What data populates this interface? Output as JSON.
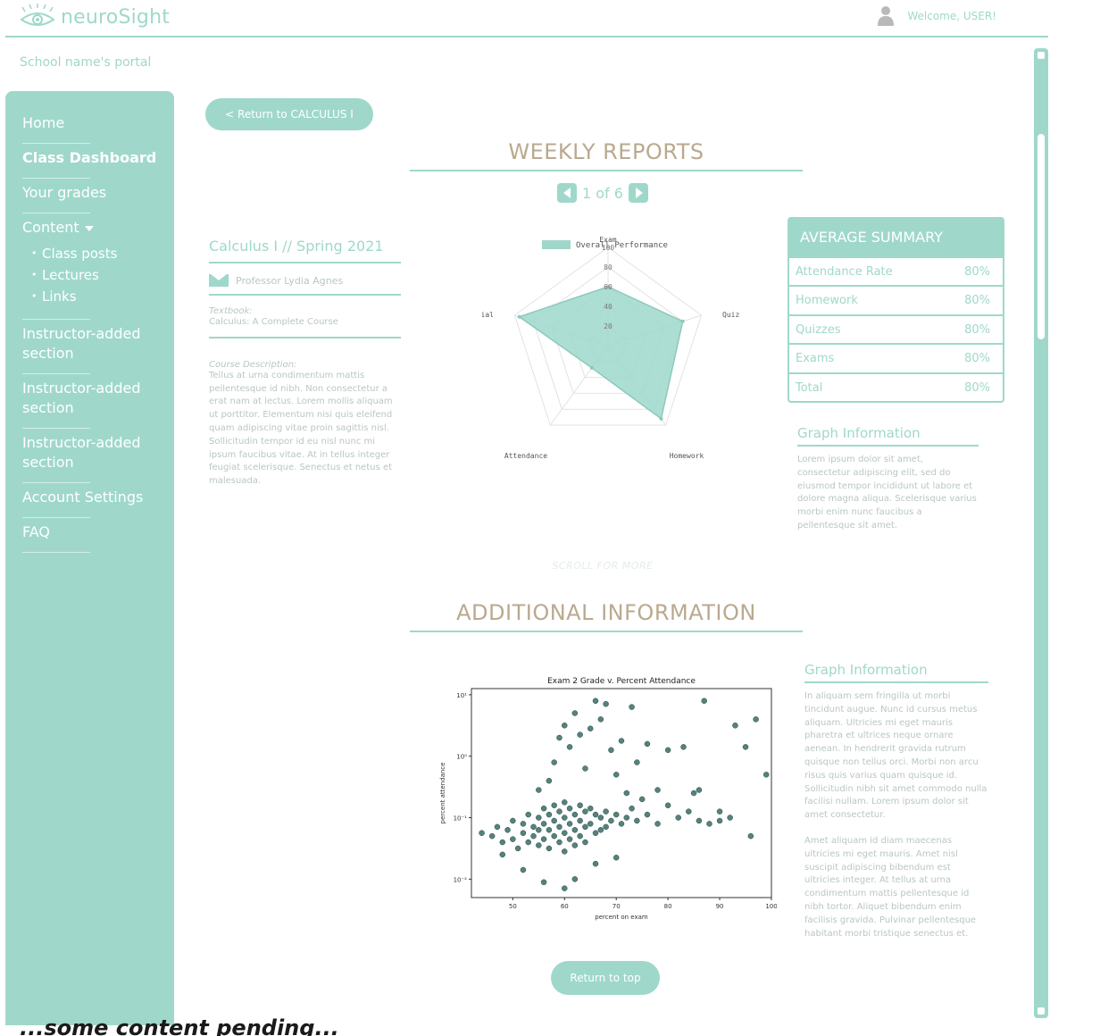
{
  "header": {
    "app_name": "neuroSight",
    "welcome": "Welcome, USER!",
    "portal_title": "School name's portal"
  },
  "sidebar": {
    "items": [
      {
        "label": "Home"
      },
      {
        "label": "Class Dashboard"
      },
      {
        "label": "Your grades"
      },
      {
        "label": "Content"
      },
      {
        "label": "Instructor-added section"
      },
      {
        "label": "Instructor-added section"
      },
      {
        "label": "Instructor-added section"
      },
      {
        "label": "Account Settings"
      },
      {
        "label": "FAQ"
      }
    ],
    "content_subitems": [
      "Class posts",
      "Lectures",
      "Links"
    ]
  },
  "main": {
    "return_button": "< Return to CALCULUS I",
    "weekly_title": "WEEKLY REPORTS",
    "pager": "1 of 6",
    "course": {
      "title": "Calculus I  //  Spring 2021",
      "professor": "Professor Lydia Agnes",
      "textbook_label": "Textbook:",
      "textbook": "Calculus: A Complete Course",
      "description_label": "Course Description:",
      "description": "Tellus at urna condimentum mattis pellentesque id nibh. Non consectetur a erat nam at lectus. Lorem mollis aliquam ut porttitor. Elementum nisi quis eleifend quam adipiscing vitae proin sagittis nisl. Sollicitudin tempor id eu nisl nunc mi ipsum faucibus vitae. At in tellus integer feugiat scelerisque. Senectus et netus et malesuada."
    },
    "summary": {
      "title": "AVERAGE SUMMARY",
      "rows": [
        {
          "label": "Attendance Rate",
          "value": "80%"
        },
        {
          "label": "Homework",
          "value": "80%"
        },
        {
          "label": "Quizzes",
          "value": "80%"
        },
        {
          "label": "Exams",
          "value": "80%"
        },
        {
          "label": "Total",
          "value": "80%"
        }
      ]
    },
    "graph_info_1": {
      "title": "Graph Information",
      "text": "Lorem ipsum dolor sit amet, consectetur adipiscing elit, sed do eiusmod tempor incididunt ut labore et dolore magna aliqua. Scelerisque varius morbi enim nunc faucibus a pellentesque sit amet."
    },
    "scroll_more": "SCROLL FOR MORE",
    "additional_title": "ADDITIONAL INFORMATION",
    "graph_info_2": {
      "title": "Graph Information",
      "text1": "In aliquam sem fringilla ut morbi tincidunt augue. Nunc id cursus metus aliquam. Ultricies mi eget mauris pharetra et ultrices neque ornare aenean. In hendrerit gravida rutrum quisque non tellus orci. Morbi non arcu risus quis varius quam quisque id. Sollicitudin nibh sit amet commodo nulla facilisi nullam. Lorem ipsum dolor sit amet consectetur.",
      "text2": "Amet aliquam id diam maecenas ultricies mi eget mauris. Amet nisl suscipit adipiscing bibendum est ultricies integer. At tellus at urna condimentum mattis pellentesque id nibh tortor. Aliquet bibendum enim facilisis gravida. Pulvinar pellentesque habitant morbi tristique senectus et."
    },
    "top_button": "Return to top",
    "caption": "...some content pending..."
  },
  "colors": {
    "mint": "#9fd8cb",
    "tan": "#b9a98f",
    "dot": "#3a6b66"
  },
  "chart_data": [
    {
      "type": "radar",
      "legend": "Overall Performance",
      "axes": [
        "Exam",
        "Quiz",
        "Homework",
        "Attendance",
        "Social"
      ],
      "values": [
        60,
        80,
        92,
        28,
        95
      ],
      "rlim": [
        0,
        100
      ],
      "rticks": [
        "20",
        "40",
        "60",
        "80",
        "100"
      ]
    },
    {
      "type": "scatter",
      "title": "Exam 2 Grade v. Percent Attendance",
      "xlabel": "percent on exam",
      "ylabel": "percent attendance",
      "xticks": [
        "50",
        "60",
        "70",
        "80",
        "90",
        "100"
      ],
      "yticks": [
        "10⁻²",
        "10⁻¹",
        "10⁰",
        "10¹"
      ],
      "xlim": [
        42,
        100
      ],
      "ylog_lim": [
        -2.3,
        1.1
      ],
      "points": [
        [
          44,
          -1.25
        ],
        [
          46,
          -1.3
        ],
        [
          47,
          -1.15
        ],
        [
          48,
          -1.4
        ],
        [
          49,
          -1.2
        ],
        [
          50,
          -1.05
        ],
        [
          50,
          -1.35
        ],
        [
          51,
          -1.5
        ],
        [
          52,
          -1.1
        ],
        [
          52,
          -1.25
        ],
        [
          53,
          -0.95
        ],
        [
          53,
          -1.4
        ],
        [
          54,
          -1.15
        ],
        [
          54,
          -1.3
        ],
        [
          55,
          -1.0
        ],
        [
          55,
          -1.2
        ],
        [
          55,
          -1.45
        ],
        [
          56,
          -0.85
        ],
        [
          56,
          -1.1
        ],
        [
          56,
          -1.35
        ],
        [
          57,
          -0.95
        ],
        [
          57,
          -1.2
        ],
        [
          57,
          -1.5
        ],
        [
          58,
          -0.8
        ],
        [
          58,
          -1.05
        ],
        [
          58,
          -1.3
        ],
        [
          59,
          -0.9
        ],
        [
          59,
          -1.15
        ],
        [
          59,
          -1.4
        ],
        [
          60,
          -0.75
        ],
        [
          60,
          -1.0
        ],
        [
          60,
          -1.25
        ],
        [
          60,
          -1.55
        ],
        [
          61,
          -0.85
        ],
        [
          61,
          -1.1
        ],
        [
          61,
          -1.35
        ],
        [
          62,
          -0.95
        ],
        [
          62,
          -1.2
        ],
        [
          62,
          -1.45
        ],
        [
          63,
          -0.8
        ],
        [
          63,
          -1.05
        ],
        [
          63,
          -1.3
        ],
        [
          64,
          -0.9
        ],
        [
          64,
          -1.15
        ],
        [
          64,
          -1.4
        ],
        [
          65,
          -0.85
        ],
        [
          65,
          -1.1
        ],
        [
          66,
          -0.95
        ],
        [
          66,
          -1.25
        ],
        [
          67,
          -1.0
        ],
        [
          67,
          -1.2
        ],
        [
          68,
          -0.9
        ],
        [
          68,
          -1.15
        ],
        [
          69,
          -1.05
        ],
        [
          70,
          -0.95
        ],
        [
          71,
          -1.1
        ],
        [
          72,
          -1.0
        ],
        [
          73,
          -0.85
        ],
        [
          74,
          -1.05
        ],
        [
          75,
          -0.7
        ],
        [
          76,
          -0.95
        ],
        [
          78,
          -1.1
        ],
        [
          80,
          -0.8
        ],
        [
          82,
          -1.0
        ],
        [
          84,
          -0.9
        ],
        [
          86,
          -1.05
        ],
        [
          88,
          -1.1
        ],
        [
          90,
          -1.05
        ],
        [
          92,
          -1.0
        ],
        [
          96,
          -1.3
        ],
        [
          55,
          -0.55
        ],
        [
          57,
          -0.4
        ],
        [
          58,
          -0.1
        ],
        [
          59,
          0.3
        ],
        [
          60,
          0.5
        ],
        [
          61,
          0.15
        ],
        [
          62,
          0.7
        ],
        [
          63,
          0.35
        ],
        [
          64,
          -0.2
        ],
        [
          65,
          0.45
        ],
        [
          66,
          0.9
        ],
        [
          67,
          0.6
        ],
        [
          68,
          0.85
        ],
        [
          69,
          0.1
        ],
        [
          70,
          -0.3
        ],
        [
          71,
          0.25
        ],
        [
          72,
          -0.6
        ],
        [
          73,
          0.8
        ],
        [
          74,
          -0.1
        ],
        [
          76,
          0.2
        ],
        [
          78,
          -0.55
        ],
        [
          80,
          0.1
        ],
        [
          83,
          0.15
        ],
        [
          85,
          -0.6
        ],
        [
          87,
          0.9
        ],
        [
          90,
          -0.9
        ],
        [
          93,
          0.5
        ],
        [
          95,
          0.15
        ],
        [
          97,
          0.6
        ],
        [
          99,
          -0.3
        ],
        [
          86,
          -0.55
        ],
        [
          62,
          -2.0
        ],
        [
          56,
          -2.05
        ],
        [
          60,
          -2.15
        ],
        [
          52,
          -1.85
        ],
        [
          66,
          -1.75
        ],
        [
          48,
          -1.6
        ],
        [
          70,
          -1.65
        ]
      ]
    }
  ]
}
